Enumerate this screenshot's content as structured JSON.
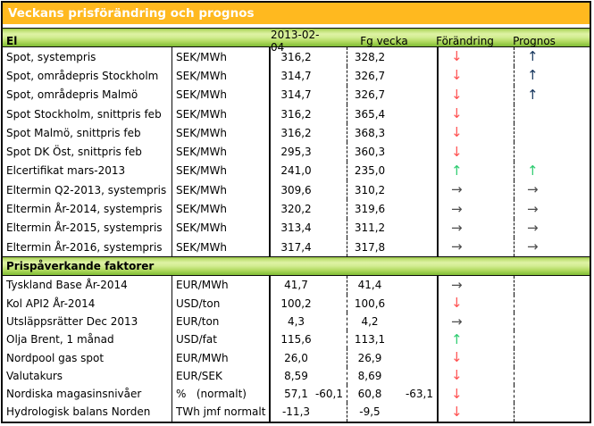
{
  "title": "Veckans prisförändring och prognos",
  "column_headers": {
    "date": "2013-02-04",
    "prev_week": "Fg vecka",
    "change": "Förändring",
    "forecast": "Prognos"
  },
  "colors": {
    "title_bg": "#ffb91f",
    "title_text": "#ffffff",
    "header_green": "#8ac33d",
    "arrow_red": "#ff5252",
    "arrow_green": "#2fcc71",
    "arrow_dark_blue": "#17375e",
    "arrow_gray": "#4d4d4d"
  },
  "arrows": {
    "down-red": {
      "glyph": "↓",
      "color": "#ff5252",
      "name": "arrow-down-red-icon"
    },
    "up-green": {
      "glyph": "↑",
      "color": "#2fcc71",
      "name": "arrow-up-green-icon"
    },
    "up-dark": {
      "glyph": "↑",
      "color": "#17375e",
      "name": "arrow-up-dark-icon"
    },
    "flat": {
      "glyph": "→",
      "color": "#4d4d4d",
      "name": "arrow-right-icon"
    },
    "none": {
      "glyph": "",
      "color": "",
      "name": "no-arrow"
    }
  },
  "sections": [
    {
      "header": "El",
      "rows": [
        {
          "label": "Spot, systempris",
          "unit": "SEK/MWh",
          "current": "316,2",
          "previous": "328,2",
          "change": "down-red",
          "forecast": "up-dark"
        },
        {
          "label": "Spot, områdepris Stockholm",
          "unit": "SEK/MWh",
          "current": "314,7",
          "previous": "326,7",
          "change": "down-red",
          "forecast": "up-dark"
        },
        {
          "label": "Spot, områdepris Malmö",
          "unit": "SEK/MWh",
          "current": "314,7",
          "previous": "326,7",
          "change": "down-red",
          "forecast": "up-dark"
        },
        {
          "label": "Spot Stockholm, snittpris feb",
          "unit": "SEK/MWh",
          "current": "316,2",
          "previous": "365,4",
          "change": "down-red",
          "forecast": "none"
        },
        {
          "label": "Spot Malmö, snittpris feb",
          "unit": "SEK/MWh",
          "current": "316,2",
          "previous": "368,3",
          "change": "down-red",
          "forecast": "none"
        },
        {
          "label": "Spot DK Öst, snittpris feb",
          "unit": "SEK/MWh",
          "current": "295,3",
          "previous": "360,3",
          "change": "down-red",
          "forecast": "none"
        },
        {
          "label": "Elcertifikat mars-2013",
          "unit": "SEK/MWh",
          "current": "241,0",
          "previous": "235,0",
          "change": "up-green",
          "forecast": "up-green"
        },
        {
          "label": "Eltermin Q2-2013, systempris",
          "unit": "SEK/MWh",
          "current": "309,6",
          "previous": "310,2",
          "change": "flat",
          "forecast": "flat"
        },
        {
          "label": "Eltermin År-2014, systempris",
          "unit": "SEK/MWh",
          "current": "320,2",
          "previous": "319,6",
          "change": "flat",
          "forecast": "flat"
        },
        {
          "label": "Eltermin År-2015, systempris",
          "unit": "SEK/MWh",
          "current": "313,4",
          "previous": "311,2",
          "change": "flat",
          "forecast": "flat"
        },
        {
          "label": "Eltermin År-2016, systempris",
          "unit": "SEK/MWh",
          "current": "317,4",
          "previous": "317,8",
          "change": "flat",
          "forecast": "flat"
        }
      ]
    },
    {
      "header": "Prispåverkande faktorer",
      "rows": [
        {
          "label": "Tyskland Base År-2014",
          "unit": "EUR/MWh",
          "current": "41,7",
          "previous": "41,4",
          "change": "flat",
          "forecast": "none"
        },
        {
          "label": "Kol API2 År-2014",
          "unit": "USD/ton",
          "current": "100,2",
          "previous": "100,6",
          "change": "down-red",
          "forecast": "none"
        },
        {
          "label": "Utsläppsrätter Dec 2013",
          "unit": "EUR/ton",
          "current": "4,3",
          "previous": "4,2",
          "change": "flat",
          "forecast": "none"
        },
        {
          "label": "Olja Brent, 1 månad",
          "unit": "USD/fat",
          "current": "115,6",
          "previous": "113,1",
          "change": "up-green",
          "forecast": "none"
        },
        {
          "label": "Nordpool gas spot",
          "unit": "EUR/MWh",
          "current": "26,0",
          "previous": "26,9",
          "change": "down-red",
          "forecast": "none"
        },
        {
          "label": "Valutakurs",
          "unit": "EUR/SEK",
          "current": "8,59",
          "previous": "8,69",
          "change": "down-red",
          "forecast": "none"
        },
        {
          "label": "Nordiska magasinsnivåer",
          "unit": "%   (normalt)",
          "current": "57,1",
          "current_extra": "-60,1",
          "previous": "60,8",
          "previous_extra": "-63,1",
          "change": "down-red",
          "forecast": "none"
        },
        {
          "label": "Hydrologisk balans Norden",
          "unit": "TWh jmf normalt",
          "current": "-11,3",
          "previous": "-9,5",
          "change": "down-red",
          "forecast": "none"
        }
      ]
    }
  ]
}
